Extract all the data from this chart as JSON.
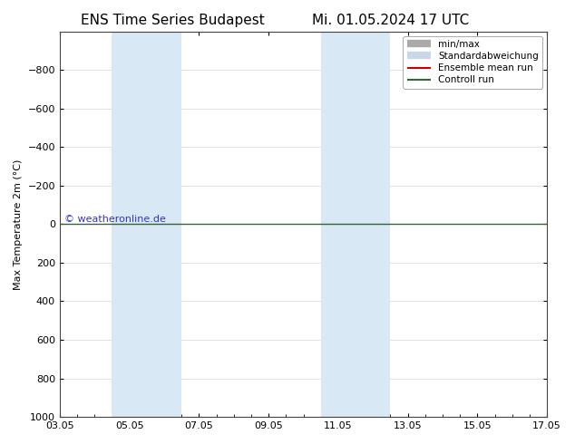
{
  "title_left": "ENS Time Series Budapest",
  "title_right": "Mi. 01.05.2024 17 UTC",
  "ylabel": "Max Temperature 2m (°C)",
  "ylim_top": -1000,
  "ylim_bottom": 1000,
  "yticks": [
    -800,
    -600,
    -400,
    -200,
    0,
    200,
    400,
    600,
    800,
    1000
  ],
  "xtick_labels": [
    "03.05",
    "05.05",
    "07.05",
    "09.05",
    "11.05",
    "13.05",
    "15.05",
    "17.05"
  ],
  "xtick_positions": [
    0,
    2,
    4,
    6,
    8,
    10,
    12,
    14
  ],
  "shaded_bands": [
    {
      "x_start": 1.5,
      "x_end": 2.5
    },
    {
      "x_start": 2.5,
      "x_end": 3.5
    },
    {
      "x_start": 7.5,
      "x_end": 8.5
    },
    {
      "x_start": 8.5,
      "x_end": 9.5
    }
  ],
  "horizontal_line_y": 0,
  "horizontal_line_color_green": "#336633",
  "watermark_text": "© weatheronline.de",
  "watermark_color": "#3333cc",
  "legend_entries": [
    {
      "label": "min/max",
      "color": "#aaaaaa",
      "lw": 6,
      "type": "line"
    },
    {
      "label": "Standardabweichung",
      "color": "#c8d8e8",
      "lw": 6,
      "type": "line"
    },
    {
      "label": "Ensemble mean run",
      "color": "#cc0000",
      "lw": 1.5,
      "type": "line"
    },
    {
      "label": "Controll run",
      "color": "#336633",
      "lw": 1.5,
      "type": "line"
    }
  ],
  "bg_color": "#ffffff",
  "plot_bg_color": "#ffffff",
  "grid_color": "#cccccc",
  "border_color": "#444444",
  "title_fontsize": 11,
  "tick_fontsize": 8,
  "ylabel_fontsize": 8,
  "shaded_color": "#d8e8f4",
  "shaded_alpha": 1.0
}
